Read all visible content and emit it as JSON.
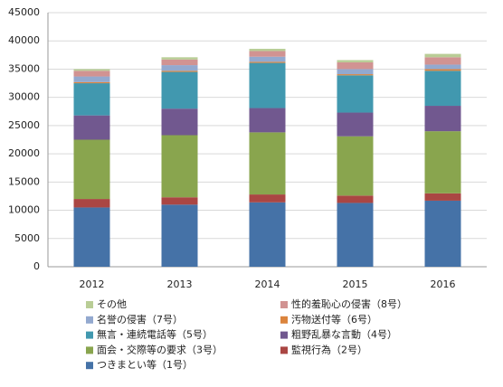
{
  "chart_data": {
    "type": "stacked_bar",
    "categories": [
      "2012",
      "2013",
      "2014",
      "2015",
      "2016"
    ],
    "ylim": [
      0,
      45000
    ],
    "yticks": [
      0,
      5000,
      10000,
      15000,
      20000,
      25000,
      30000,
      35000,
      40000,
      45000
    ],
    "grid": true,
    "series": [
      {
        "name": "つきまとい等（1号）",
        "color": "#4572a7",
        "values": [
          10500,
          11000,
          11400,
          11300,
          11700
        ]
      },
      {
        "name": "監視行為（2号）",
        "color": "#aa4643",
        "values": [
          1500,
          1300,
          1400,
          1300,
          1300
        ]
      },
      {
        "name": "面会・交際等の要求（3号）",
        "color": "#89a54e",
        "values": [
          10500,
          11000,
          11000,
          10500,
          11000
        ]
      },
      {
        "name": "粗野乱暴な言動（4号）",
        "color": "#71588f",
        "values": [
          4300,
          4700,
          4300,
          4200,
          4500
        ]
      },
      {
        "name": "無言・連続電話等（5号）",
        "color": "#4198af",
        "values": [
          5700,
          6500,
          8000,
          6600,
          6200
        ]
      },
      {
        "name": "汚物送付等（6号）",
        "color": "#db843d",
        "values": [
          200,
          200,
          200,
          200,
          300
        ]
      },
      {
        "name": "名誉の侵害（7号）",
        "color": "#93a9cf",
        "values": [
          1000,
          1000,
          900,
          900,
          800
        ]
      },
      {
        "name": "性的羞恥心の侵害（8号）",
        "color": "#d19392",
        "values": [
          1000,
          1000,
          1000,
          1200,
          1300
        ]
      },
      {
        "name": "その他",
        "color": "#b9cd96",
        "values": [
          300,
          400,
          400,
          400,
          600
        ]
      }
    ]
  }
}
